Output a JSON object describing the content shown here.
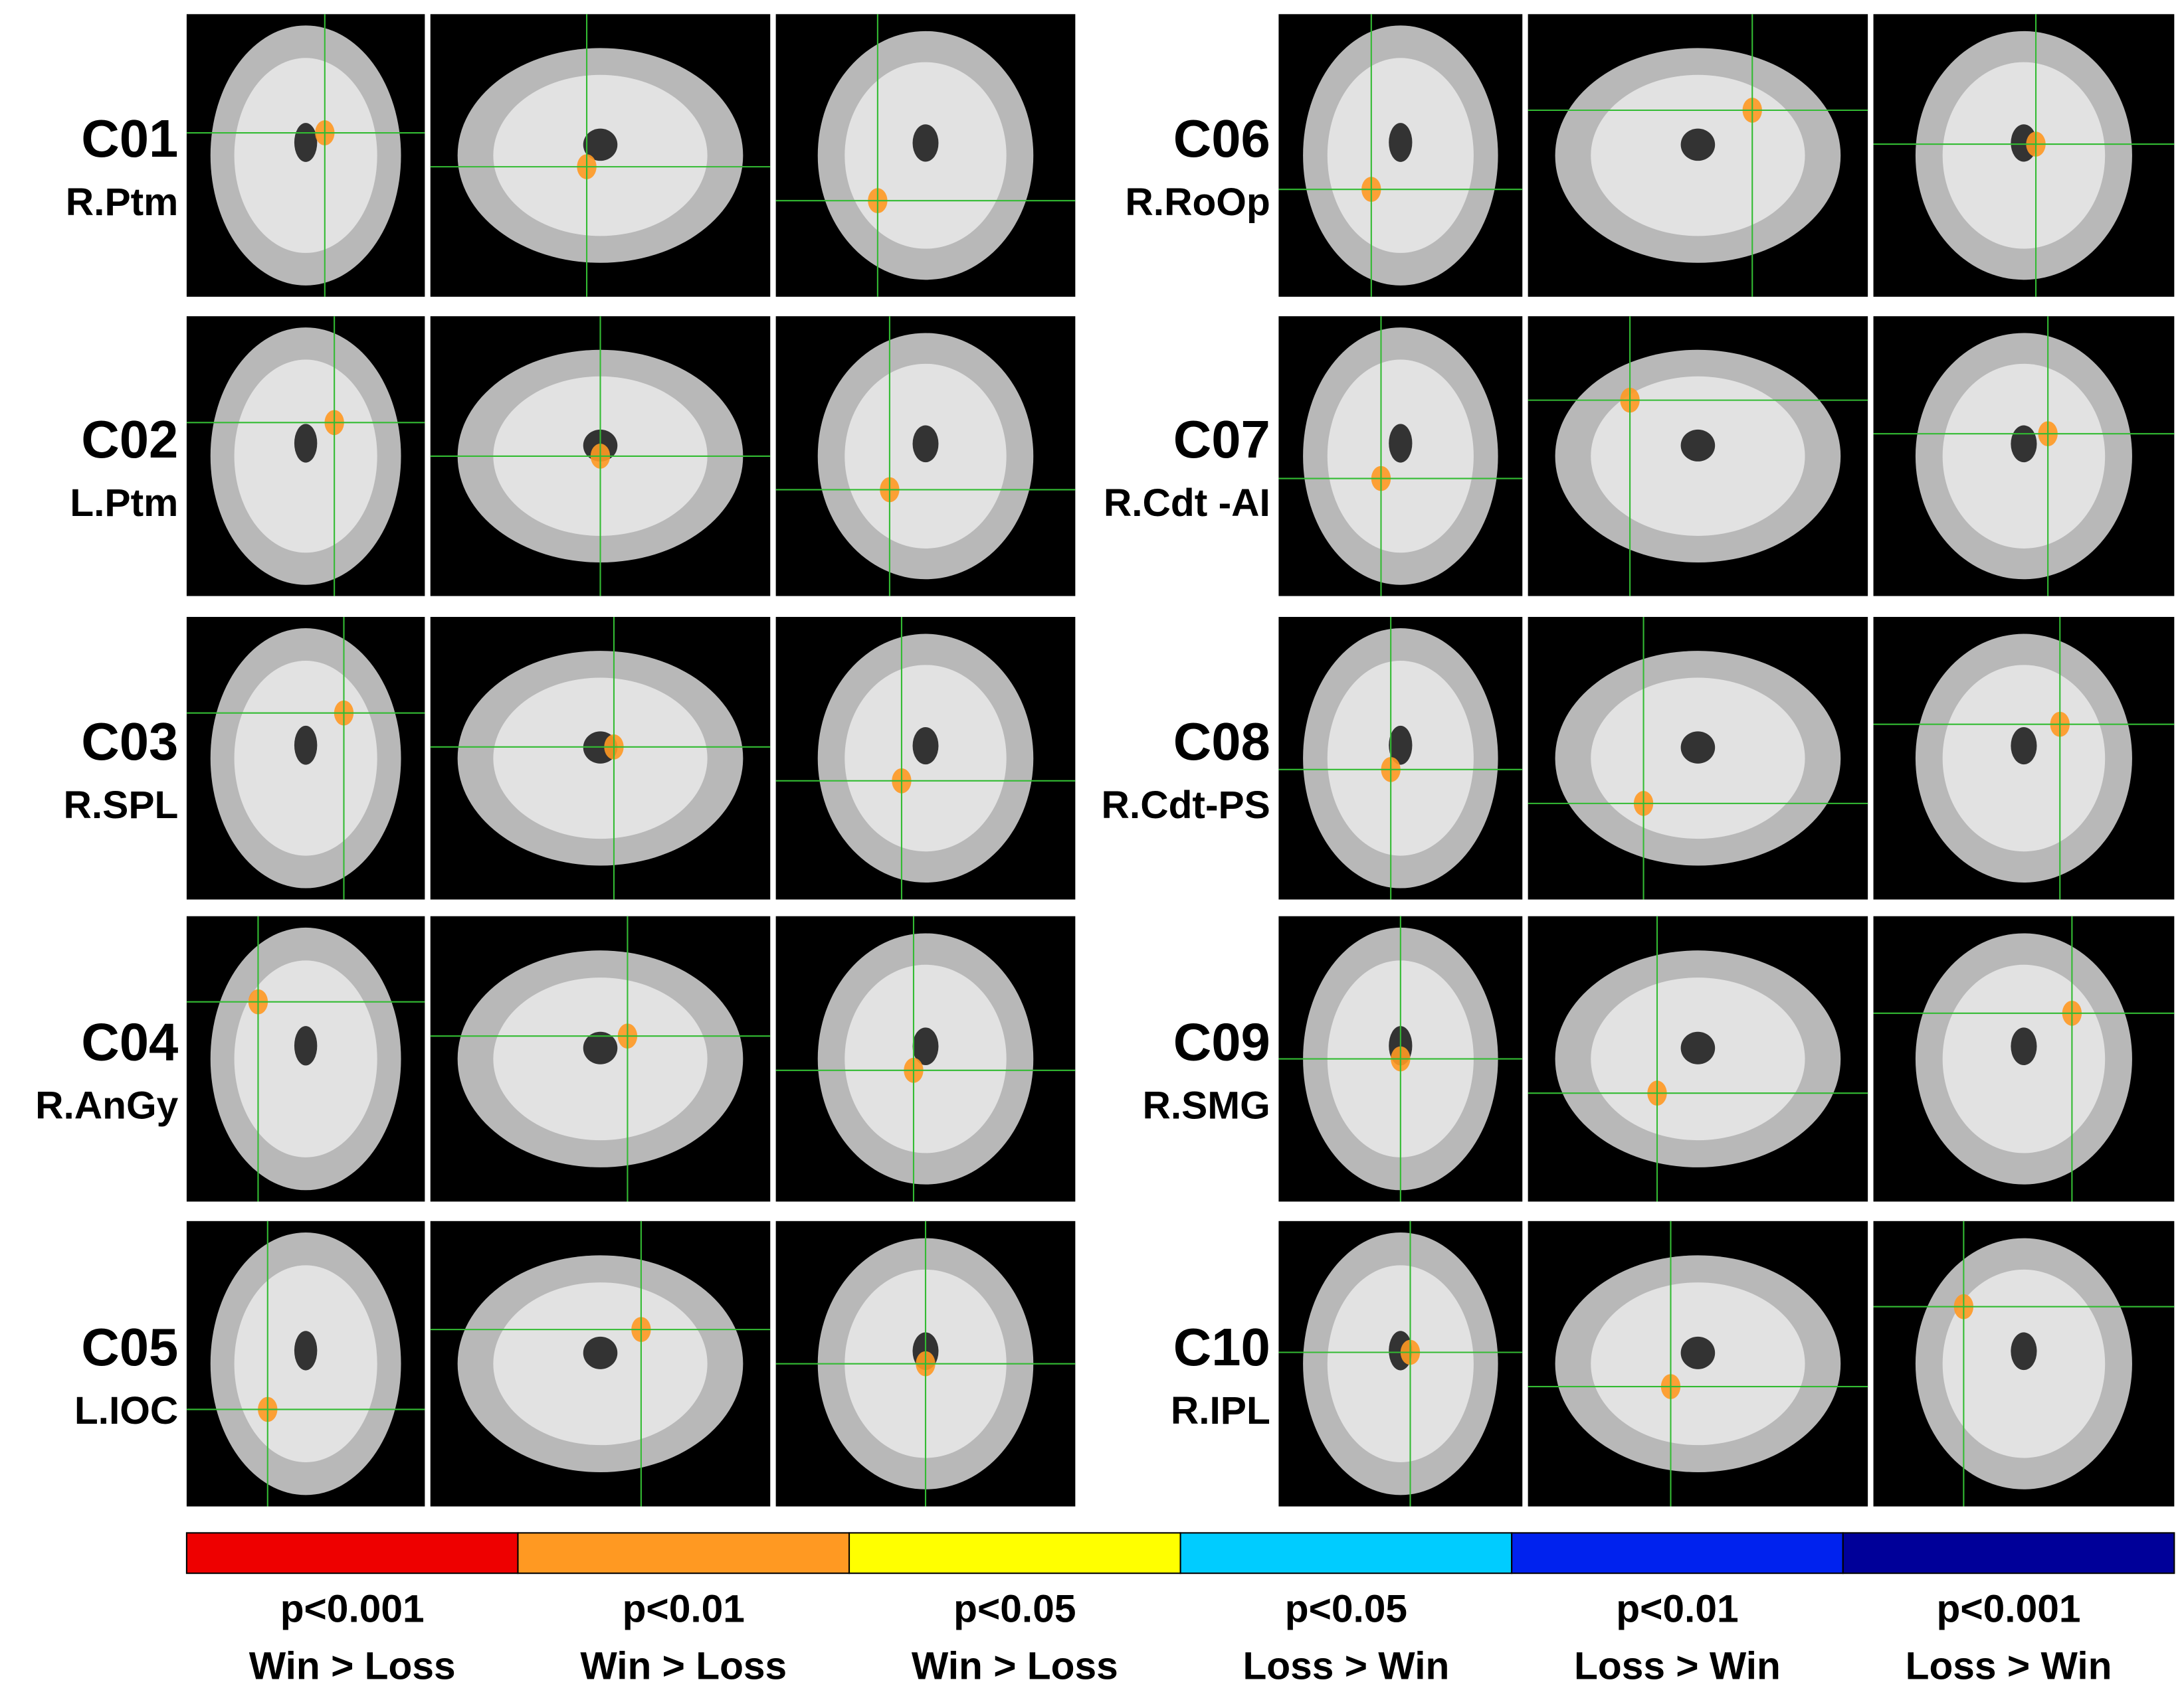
{
  "panels": [
    {
      "id": "C01",
      "region": "R.Ptm"
    },
    {
      "id": "C02",
      "region": "L.Ptm"
    },
    {
      "id": "C03",
      "region": "R.SPL"
    },
    {
      "id": "C04",
      "region": "R.AnGy"
    },
    {
      "id": "C05",
      "region": "L.IOC"
    },
    {
      "id": "C06",
      "region": "R.RoOp"
    },
    {
      "id": "C07",
      "region": "R.Cdt -AI"
    },
    {
      "id": "C08",
      "region": "R.Cdt-PS"
    },
    {
      "id": "C09",
      "region": "R.SMG"
    },
    {
      "id": "C10",
      "region": "R.IPL"
    }
  ],
  "legend": [
    {
      "p": "p<0.001",
      "contrast": "Win > Loss",
      "color": "#ee0000"
    },
    {
      "p": "p<0.01",
      "contrast": "Win > Loss",
      "color": "#ff9922"
    },
    {
      "p": "p<0.05",
      "contrast": "Win > Loss",
      "color": "#ffff00"
    },
    {
      "p": "p<0.05",
      "contrast": "Loss > Win",
      "color": "#00ccff"
    },
    {
      "p": "p<0.01",
      "contrast": "Loss > Win",
      "color": "#0022ee"
    },
    {
      "p": "p<0.001",
      "contrast": "Loss > Win",
      "color": "#000099"
    }
  ]
}
